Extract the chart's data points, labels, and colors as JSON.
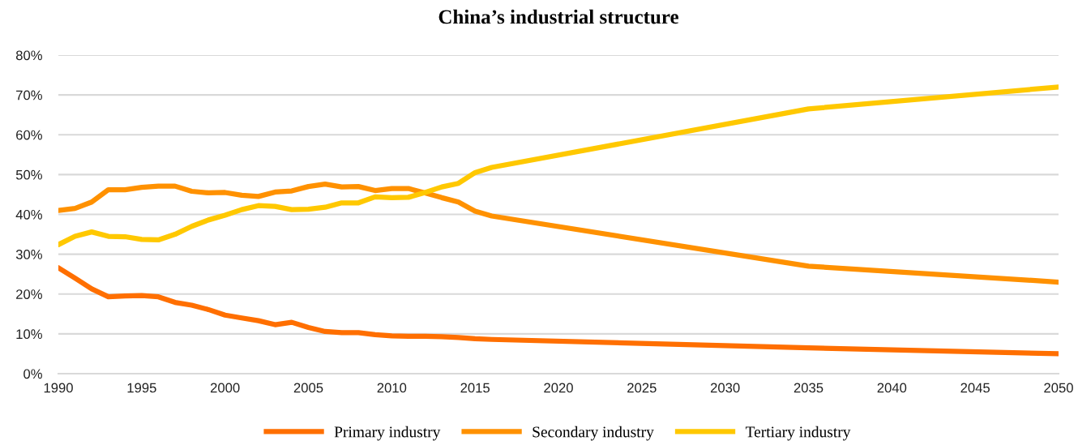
{
  "chart_data": {
    "type": "line",
    "title": "China’s industrial structure",
    "x": [
      1990,
      1991,
      1992,
      1993,
      1994,
      1995,
      1996,
      1997,
      1998,
      1999,
      2000,
      2001,
      2002,
      2003,
      2004,
      2005,
      2006,
      2007,
      2008,
      2009,
      2010,
      2011,
      2012,
      2013,
      2014,
      2015,
      2016,
      2035,
      2050
    ],
    "series": [
      {
        "name": "Primary industry",
        "color": "#ff6f00",
        "values": [
          26.6,
          24.0,
          21.3,
          19.3,
          19.5,
          19.6,
          19.3,
          17.9,
          17.2,
          16.1,
          14.7,
          14.0,
          13.3,
          12.3,
          12.9,
          11.6,
          10.6,
          10.3,
          10.3,
          9.8,
          9.5,
          9.4,
          9.4,
          9.3,
          9.1,
          8.8,
          8.6,
          6.5,
          5.0
        ]
      },
      {
        "name": "Secondary industry",
        "color": "#ff9100",
        "values": [
          41.0,
          41.5,
          43.1,
          46.2,
          46.2,
          46.8,
          47.1,
          47.1,
          45.8,
          45.4,
          45.5,
          44.8,
          44.5,
          45.6,
          45.9,
          47.0,
          47.6,
          46.9,
          47.0,
          46.0,
          46.5,
          46.5,
          45.4,
          44.2,
          43.1,
          40.8,
          39.6,
          27.0,
          23.0
        ]
      },
      {
        "name": "Tertiary industry",
        "color": "#ffc800",
        "values": [
          32.4,
          34.5,
          35.6,
          34.5,
          34.4,
          33.7,
          33.6,
          35.0,
          37.0,
          38.6,
          39.8,
          41.2,
          42.2,
          42.0,
          41.2,
          41.3,
          41.8,
          42.9,
          42.9,
          44.4,
          44.2,
          44.3,
          45.5,
          46.9,
          47.8,
          50.5,
          51.8,
          66.5,
          72.0
        ]
      }
    ],
    "xlim": [
      1990,
      2050
    ],
    "xticks": [
      1990,
      1995,
      2000,
      2005,
      2010,
      2015,
      2020,
      2025,
      2030,
      2035,
      2040,
      2045,
      2050
    ],
    "ylim": [
      0,
      80
    ],
    "yticks": [
      {
        "value": 0,
        "label": "0%"
      },
      {
        "value": 10,
        "label": "10%"
      },
      {
        "value": 20,
        "label": "20%"
      },
      {
        "value": 30,
        "label": "30%"
      },
      {
        "value": 40,
        "label": "40%"
      },
      {
        "value": 50,
        "label": "50%"
      },
      {
        "value": 60,
        "label": "60%"
      },
      {
        "value": 70,
        "label": "70%"
      },
      {
        "value": 80,
        "label": "80%"
      }
    ],
    "grid": "y",
    "legend": "bottom",
    "marker": "none",
    "line_style": "solid"
  }
}
